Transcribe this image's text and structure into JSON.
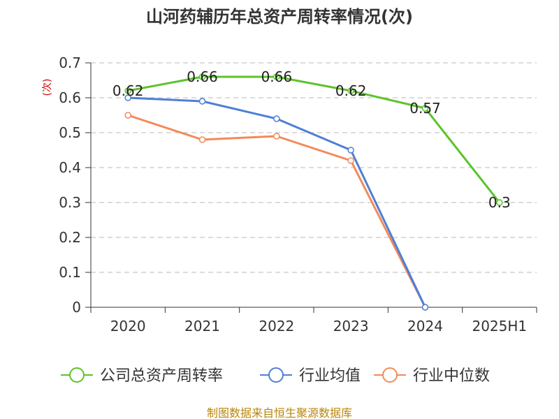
{
  "chart_data": {
    "type": "line",
    "title": "山河药辅历年总资产周转率情况(次)",
    "ylabel": "(次)",
    "xlabel": "",
    "categories": [
      "2020",
      "2021",
      "2022",
      "2023",
      "2024",
      "2025H1"
    ],
    "ylim": [
      0,
      0.7
    ],
    "yticks": [
      "0",
      "0.1",
      "0.2",
      "0.3",
      "0.4",
      "0.5",
      "0.6",
      "0.7"
    ],
    "grid": "horizontal-dashed",
    "legend_position": "bottom",
    "series": [
      {
        "name": "公司总资产周转率",
        "color": "#5cc329",
        "values": [
          0.62,
          0.66,
          0.66,
          0.62,
          0.57,
          0.3
        ],
        "labels": [
          "0.62",
          "0.66",
          "0.66",
          "0.62",
          "0.57",
          "0.3"
        ]
      },
      {
        "name": "行业均值",
        "color": "#4e7fd6",
        "values": [
          0.6,
          0.59,
          0.54,
          0.45,
          0,
          null
        ]
      },
      {
        "name": "行业中位数",
        "color": "#f28a5a",
        "values": [
          0.55,
          0.48,
          0.49,
          0.42,
          0,
          null
        ]
      }
    ]
  },
  "source": "制图数据来自恒生聚源数据库"
}
